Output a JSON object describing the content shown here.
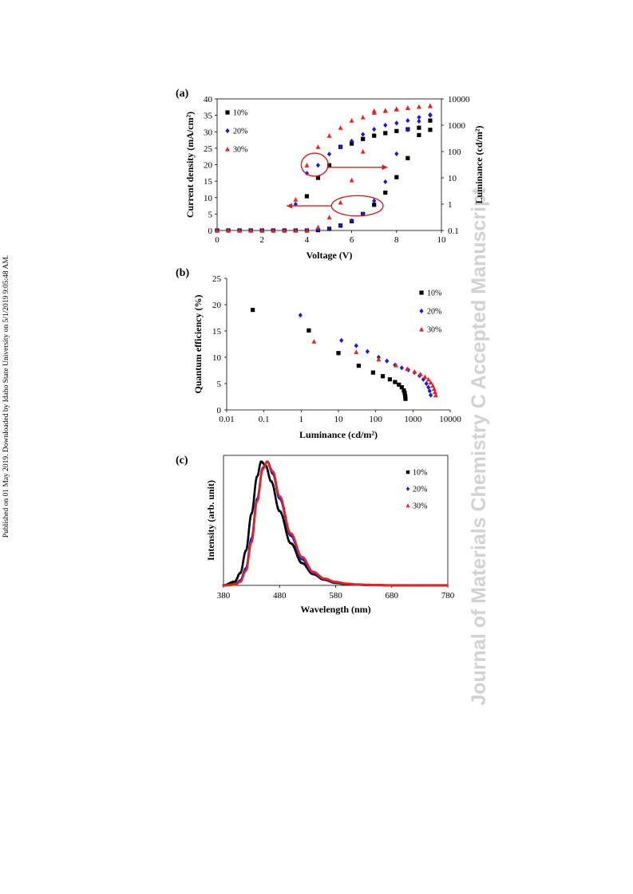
{
  "side_note": "Published on 01 May 2019. Downloaded by Idaho State University on 5/1/2019 9:05:48 AM.",
  "watermark": "Journal of Materials Chemistry C Accepted Manuscript",
  "colors": {
    "s10": "#000000",
    "s20": "#1a1adc",
    "s30": "#e8231c",
    "annotation": "#d21f1f"
  },
  "chart_data": [
    {
      "panel": "(a)",
      "type": "scatter",
      "xlabel": "Voltage (V)",
      "ylabel": "Current density (mA/cm²)",
      "y2label": "Luminance (cd/m²)",
      "xlim": [
        0,
        10
      ],
      "ylim": [
        0,
        40
      ],
      "y2lim": [
        0.1,
        10000
      ],
      "y2scale": "log",
      "xticks": [
        0,
        2,
        4,
        6,
        8,
        10
      ],
      "yticks": [
        0,
        5,
        10,
        15,
        20,
        25,
        30,
        35,
        40
      ],
      "y2ticks": [
        0.1,
        1,
        10,
        100,
        1000,
        10000
      ],
      "y2ticklabels": [
        "0.1",
        "1",
        "10",
        "100",
        "1000",
        "10000"
      ],
      "legend": [
        "10%",
        "20%",
        "30%"
      ],
      "legend_position": "top-left",
      "series": [
        {
          "name": "10%",
          "marker": "square",
          "axis": "left",
          "x": [
            0,
            0.5,
            1,
            1.5,
            2,
            2.5,
            3,
            3.5,
            4,
            4.5,
            5,
            5.5,
            6,
            6.5,
            7,
            7.5,
            8,
            8.5,
            9,
            9.5
          ],
          "y": [
            0,
            0,
            0,
            0,
            0,
            0,
            0,
            0,
            0,
            0.1,
            0.5,
            1.5,
            2.8,
            5,
            7.8,
            11.5,
            16.2,
            22,
            29,
            30.6
          ]
        },
        {
          "name": "10%",
          "marker": "square",
          "axis": "right",
          "x": [
            4,
            4.5,
            5,
            5.5,
            6,
            6.5,
            7,
            7.5,
            8,
            8.5,
            9,
            9.5
          ],
          "y": [
            2,
            10,
            30,
            150,
            200,
            300,
            400,
            500,
            600,
            700,
            800,
            1500
          ]
        },
        {
          "name": "20%",
          "marker": "diamond",
          "axis": "left",
          "x": [
            0,
            0.5,
            1,
            1.5,
            2,
            2.5,
            3,
            3.5,
            4,
            4.5,
            5,
            5.5,
            6,
            6.5,
            7,
            7.5,
            8,
            8.5,
            9,
            9.5
          ],
          "y": [
            0,
            0,
            0,
            0,
            0,
            0,
            0,
            0,
            0,
            0.2,
            0.5,
            1.5,
            3,
            5,
            9,
            14.8,
            23.3,
            30.6,
            33.2,
            35
          ]
        },
        {
          "name": "20%",
          "marker": "diamond",
          "axis": "right",
          "x": [
            3.5,
            4,
            4.5,
            5,
            5.5,
            6,
            6.5,
            7,
            7.5,
            8,
            8.5,
            9,
            9.5
          ],
          "y": [
            1,
            15,
            30,
            80,
            150,
            250,
            450,
            700,
            1000,
            1200,
            1500,
            2000,
            2500
          ]
        },
        {
          "name": "30%",
          "marker": "triangle",
          "axis": "left",
          "x": [
            0,
            0.5,
            1,
            1.5,
            2,
            2.5,
            3,
            3.5,
            4,
            4.5,
            5,
            5.5,
            6,
            6.5,
            7,
            7.5,
            8,
            8.5,
            9,
            9.5
          ],
          "y": [
            0,
            0,
            0,
            0,
            0,
            0,
            0,
            0,
            0,
            1,
            4,
            8.5,
            15.3,
            24,
            35.8,
            36.5,
            37,
            37.3,
            37.6,
            37.8
          ]
        },
        {
          "name": "30%",
          "marker": "triangle",
          "axis": "right",
          "x": [
            3.5,
            4,
            4.5,
            5,
            5.5,
            6,
            6.5,
            7,
            7.5,
            8,
            8.5,
            9,
            9.5
          ],
          "y": [
            1.5,
            30,
            150,
            400,
            800,
            1500,
            2000,
            3500,
            3500,
            4000,
            4500,
            5000,
            5500
          ]
        }
      ],
      "annotations": [
        {
          "type": "ellipse",
          "cx": 4.35,
          "cy": 20,
          "rx": 0.6,
          "ry": 3.5
        },
        {
          "type": "arrow",
          "x1": 4.9,
          "y1": 19.2,
          "x2": 7.6,
          "y2": 19.2
        },
        {
          "type": "ellipse",
          "cx": 6.25,
          "cy": 7.5,
          "rx": 1.15,
          "ry": 3.1
        },
        {
          "type": "arrow",
          "x1": 5.1,
          "y1": 7.5,
          "x2": 3.1,
          "y2": 7.5
        }
      ]
    },
    {
      "panel": "(b)",
      "type": "scatter",
      "xlabel": "Luminance (cd/m²)",
      "ylabel": "Quantum efficiency (%)",
      "xscale": "log",
      "xlim": [
        0.01,
        10000
      ],
      "ylim": [
        0,
        25
      ],
      "xticks": [
        0.01,
        0.1,
        1,
        10,
        100,
        1000,
        10000
      ],
      "xticklabels": [
        "0.01",
        "0.1",
        "1",
        "10",
        "100",
        "1000",
        "10000"
      ],
      "yticks": [
        0,
        5,
        10,
        15,
        20,
        25
      ],
      "legend": [
        "10%",
        "20%",
        "30%"
      ],
      "legend_position": "top-right",
      "series": [
        {
          "name": "10%",
          "marker": "square",
          "x": [
            0.05,
            1.6,
            10,
            35,
            85,
            155,
            240,
            330,
            420,
            500,
            570,
            600,
            620,
            630
          ],
          "y": [
            19,
            15.1,
            10.8,
            8.4,
            7.1,
            6.4,
            5.8,
            5.3,
            4.8,
            4.3,
            3.7,
            3.2,
            2.6,
            2.1
          ]
        },
        {
          "name": "20%",
          "marker": "diamond",
          "x": [
            0.95,
            12,
            30,
            60,
            120,
            200,
            330,
            500,
            750,
            1100,
            1500,
            1900,
            2300,
            2600,
            2800,
            3000
          ],
          "y": [
            18,
            13.2,
            12.2,
            11.1,
            10,
            9.3,
            8.5,
            8,
            7.6,
            7.1,
            6.5,
            5.8,
            5,
            4.3,
            3.6,
            2.8
          ]
        },
        {
          "name": "30%",
          "marker": "triangle",
          "x": [
            2.2,
            30,
            120,
            350,
            700,
            1100,
            1600,
            2100,
            2600,
            3000,
            3400,
            3700,
            3900,
            4100
          ],
          "y": [
            13,
            11,
            9.6,
            8.5,
            7.8,
            7.3,
            6.8,
            6.3,
            5.8,
            5.2,
            4.6,
            4,
            3.4,
            2.8
          ]
        }
      ]
    },
    {
      "panel": "(c)",
      "type": "line",
      "xlabel": "Wavelength (nm)",
      "ylabel": "Intensity (arb. unit)",
      "xlim": [
        380,
        780
      ],
      "ylim": [
        0,
        1.05
      ],
      "xticks": [
        380,
        480,
        580,
        680,
        780
      ],
      "legend": [
        "10%",
        "20%",
        "30%"
      ],
      "legend_position": "top-right",
      "series": [
        {
          "name": "10%",
          "marker": "square",
          "x": [
            380,
            400,
            410,
            420,
            430,
            440,
            447,
            455,
            465,
            480,
            500,
            520,
            540,
            560,
            580,
            600,
            620,
            650,
            700,
            780
          ],
          "y": [
            0,
            0.03,
            0.1,
            0.28,
            0.58,
            0.88,
            1.0,
            0.97,
            0.84,
            0.6,
            0.34,
            0.18,
            0.09,
            0.045,
            0.02,
            0.01,
            0.005,
            0.002,
            0,
            0
          ]
        },
        {
          "name": "20%",
          "marker": "diamond",
          "x": [
            380,
            400,
            410,
            420,
            430,
            440,
            450,
            458,
            468,
            480,
            500,
            520,
            540,
            560,
            580,
            600,
            620,
            650,
            700,
            780
          ],
          "y": [
            0,
            0.01,
            0.04,
            0.14,
            0.38,
            0.7,
            0.95,
            1.0,
            0.9,
            0.7,
            0.4,
            0.21,
            0.1,
            0.05,
            0.025,
            0.012,
            0.006,
            0.002,
            0,
            0
          ]
        },
        {
          "name": "30%",
          "marker": "triangle",
          "x": [
            380,
            400,
            410,
            420,
            430,
            440,
            450,
            458,
            468,
            480,
            500,
            520,
            540,
            560,
            580,
            600,
            620,
            650,
            700,
            780
          ],
          "y": [
            0,
            0.005,
            0.03,
            0.12,
            0.35,
            0.68,
            0.94,
            1.0,
            0.92,
            0.72,
            0.42,
            0.23,
            0.11,
            0.055,
            0.028,
            0.014,
            0.007,
            0.002,
            0,
            0
          ]
        }
      ]
    }
  ]
}
